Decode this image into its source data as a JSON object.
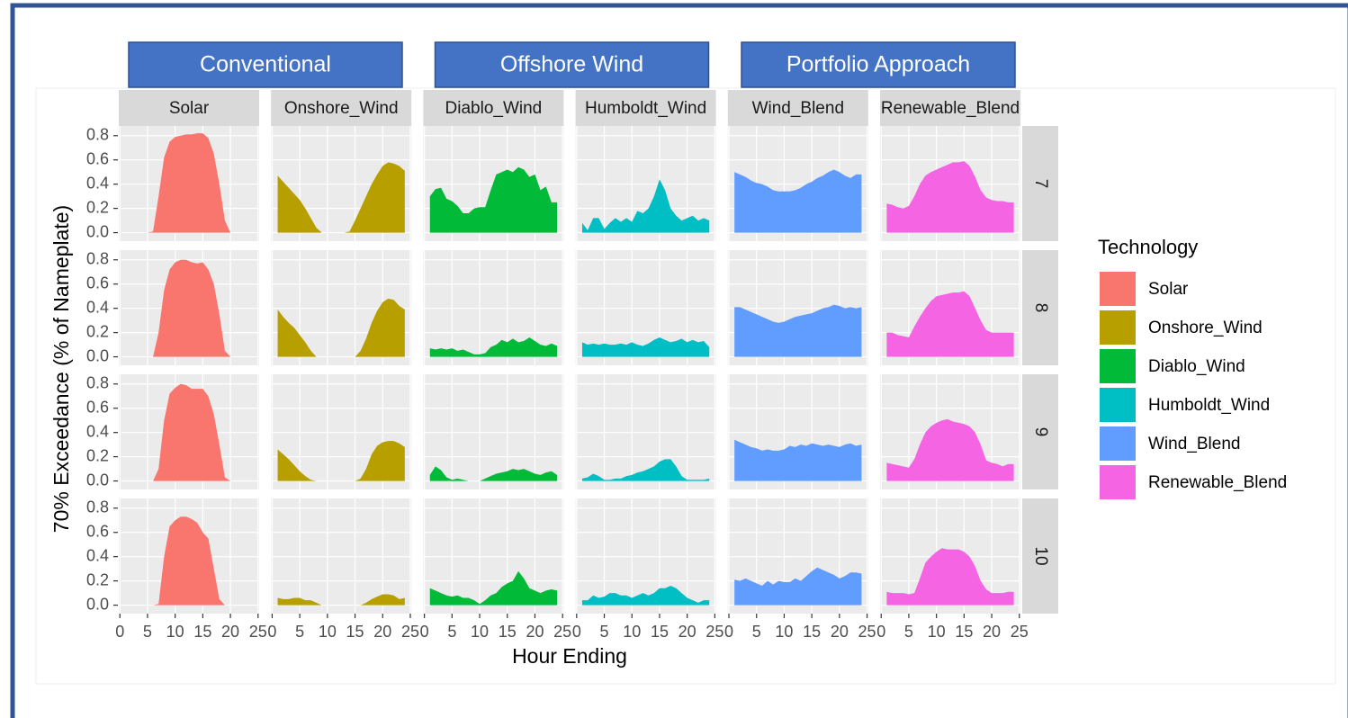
{
  "chart_data": {
    "type": "area",
    "group_labels": [
      "Conventional",
      "Offshore Wind",
      "Portfolio Approach"
    ],
    "x_label": "Hour Ending",
    "y_label": "70% Exceedance (% of Nameplate)",
    "legend_title": "Technology",
    "rows": [
      "7",
      "8",
      "9",
      "10"
    ],
    "x": [
      1,
      2,
      3,
      4,
      5,
      6,
      7,
      8,
      9,
      10,
      11,
      12,
      13,
      14,
      15,
      16,
      17,
      18,
      19,
      20,
      21,
      22,
      23,
      24
    ],
    "xlim": [
      -0.2,
      25.2
    ],
    "xticks": [
      0,
      5,
      10,
      15,
      20,
      25
    ],
    "ylim": [
      -0.07,
      0.88
    ],
    "yticks": [
      {
        "value": 0,
        "label": "0.0"
      },
      0.2,
      0.4,
      0.6,
      0.8
    ],
    "grid": true,
    "series": [
      {
        "name": "Solar",
        "color": "#F8766D",
        "values": [
          [
            0,
            0,
            0,
            0,
            0,
            0.01,
            0.3,
            0.62,
            0.75,
            0.79,
            0.8,
            0.81,
            0.81,
            0.82,
            0.82,
            0.78,
            0.65,
            0.4,
            0.1,
            0,
            0,
            0,
            0,
            0
          ],
          [
            0,
            0,
            0,
            0,
            0,
            0,
            0.2,
            0.55,
            0.72,
            0.78,
            0.8,
            0.8,
            0.78,
            0.77,
            0.78,
            0.72,
            0.6,
            0.35,
            0.05,
            0,
            0,
            0,
            0,
            0
          ],
          [
            0,
            0,
            0,
            0,
            0,
            0,
            0.1,
            0.5,
            0.72,
            0.77,
            0.8,
            0.79,
            0.76,
            0.76,
            0.76,
            0.7,
            0.55,
            0.3,
            0.03,
            0,
            0,
            0,
            0,
            0
          ],
          [
            0,
            0,
            0,
            0,
            0,
            0,
            0.01,
            0.4,
            0.65,
            0.7,
            0.73,
            0.73,
            0.71,
            0.68,
            0.6,
            0.55,
            0.3,
            0.05,
            0,
            0,
            0,
            0,
            0,
            0
          ]
        ]
      },
      {
        "name": "Onshore_Wind",
        "color": "#B79F00",
        "values": [
          [
            0.47,
            0.42,
            0.37,
            0.32,
            0.27,
            0.2,
            0.12,
            0.04,
            0,
            0,
            0,
            0,
            0,
            0.01,
            0.1,
            0.2,
            0.3,
            0.4,
            0.48,
            0.55,
            0.58,
            0.57,
            0.55,
            0.51
          ],
          [
            0.39,
            0.33,
            0.28,
            0.24,
            0.18,
            0.12,
            0.05,
            0,
            0,
            0,
            0,
            0,
            0,
            0,
            0,
            0.05,
            0.15,
            0.28,
            0.38,
            0.45,
            0.48,
            0.47,
            0.42,
            0.39
          ],
          [
            0.26,
            0.22,
            0.18,
            0.13,
            0.08,
            0.04,
            0.01,
            0,
            0,
            0,
            0,
            0,
            0,
            0,
            0,
            0.02,
            0.1,
            0.22,
            0.29,
            0.32,
            0.33,
            0.33,
            0.31,
            0.28
          ],
          [
            0.06,
            0.05,
            0.05,
            0.06,
            0.06,
            0.04,
            0.04,
            0.02,
            0,
            0,
            0,
            0,
            0,
            0,
            0,
            0,
            0.02,
            0.05,
            0.07,
            0.09,
            0.09,
            0.08,
            0.05,
            0.06
          ]
        ]
      },
      {
        "name": "Diablo_Wind",
        "color": "#00BA38",
        "values": [
          [
            0.3,
            0.36,
            0.37,
            0.28,
            0.26,
            0.22,
            0.16,
            0.16,
            0.2,
            0.21,
            0.21,
            0.35,
            0.48,
            0.5,
            0.52,
            0.5,
            0.54,
            0.52,
            0.46,
            0.48,
            0.35,
            0.38,
            0.25,
            0.25
          ],
          [
            0.07,
            0.06,
            0.07,
            0.06,
            0.07,
            0.05,
            0.06,
            0.04,
            0.02,
            0.02,
            0.03,
            0.08,
            0.1,
            0.14,
            0.12,
            0.15,
            0.12,
            0.13,
            0.16,
            0.13,
            0.1,
            0.09,
            0.11,
            0.09
          ],
          [
            0.05,
            0.12,
            0.09,
            0.03,
            0.01,
            0.02,
            0.01,
            0,
            0,
            0,
            0.02,
            0.04,
            0.06,
            0.07,
            0.08,
            0.1,
            0.09,
            0.1,
            0.08,
            0.06,
            0.05,
            0.07,
            0.08,
            0.05
          ],
          [
            0.14,
            0.12,
            0.1,
            0.08,
            0.07,
            0.08,
            0.06,
            0.06,
            0.04,
            0.01,
            0.04,
            0.08,
            0.1,
            0.15,
            0.18,
            0.2,
            0.28,
            0.22,
            0.14,
            0.12,
            0.1,
            0.12,
            0.13,
            0.12
          ]
        ]
      },
      {
        "name": "Humboldt_Wind",
        "color": "#00BFC4",
        "values": [
          [
            0.08,
            0.02,
            0.12,
            0.12,
            0.03,
            0.08,
            0.12,
            0.09,
            0.12,
            0.09,
            0.18,
            0.16,
            0.2,
            0.3,
            0.44,
            0.35,
            0.2,
            0.14,
            0.1,
            0.12,
            0.14,
            0.1,
            0.12,
            0.1
          ],
          [
            0.12,
            0.1,
            0.11,
            0.1,
            0.11,
            0.1,
            0.1,
            0.11,
            0.1,
            0.12,
            0.1,
            0.09,
            0.11,
            0.14,
            0.16,
            0.14,
            0.12,
            0.13,
            0.15,
            0.12,
            0.14,
            0.12,
            0.13,
            0.08
          ],
          [
            0.02,
            0.03,
            0.06,
            0.04,
            0.01,
            0.01,
            0.02,
            0.02,
            0.04,
            0.05,
            0.07,
            0.08,
            0.1,
            0.12,
            0.16,
            0.18,
            0.18,
            0.12,
            0.04,
            0.01,
            0.01,
            0.01,
            0.01,
            0.02
          ],
          [
            0.04,
            0.04,
            0.08,
            0.06,
            0.07,
            0.1,
            0.1,
            0.08,
            0.08,
            0.06,
            0.08,
            0.1,
            0.08,
            0.1,
            0.14,
            0.14,
            0.16,
            0.14,
            0.1,
            0.06,
            0.04,
            0.02,
            0.04,
            0.04
          ]
        ]
      },
      {
        "name": "Wind_Blend",
        "color": "#619CFF",
        "values": [
          [
            0.5,
            0.48,
            0.46,
            0.43,
            0.41,
            0.4,
            0.38,
            0.35,
            0.34,
            0.34,
            0.34,
            0.35,
            0.37,
            0.4,
            0.42,
            0.45,
            0.47,
            0.5,
            0.52,
            0.5,
            0.47,
            0.45,
            0.48,
            0.48
          ],
          [
            0.41,
            0.41,
            0.39,
            0.37,
            0.35,
            0.33,
            0.31,
            0.29,
            0.28,
            0.29,
            0.31,
            0.33,
            0.34,
            0.35,
            0.36,
            0.38,
            0.4,
            0.41,
            0.43,
            0.42,
            0.4,
            0.41,
            0.4,
            0.41
          ],
          [
            0.34,
            0.32,
            0.3,
            0.28,
            0.27,
            0.25,
            0.26,
            0.25,
            0.25,
            0.26,
            0.29,
            0.28,
            0.3,
            0.29,
            0.31,
            0.3,
            0.29,
            0.3,
            0.29,
            0.28,
            0.3,
            0.31,
            0.29,
            0.3
          ],
          [
            0.21,
            0.2,
            0.22,
            0.2,
            0.18,
            0.16,
            0.2,
            0.17,
            0.2,
            0.19,
            0.19,
            0.22,
            0.2,
            0.24,
            0.28,
            0.31,
            0.29,
            0.27,
            0.25,
            0.22,
            0.24,
            0.27,
            0.27,
            0.26
          ]
        ]
      },
      {
        "name": "Renewable_Blend",
        "color": "#F564E3",
        "values": [
          [
            0.24,
            0.23,
            0.21,
            0.2,
            0.22,
            0.3,
            0.4,
            0.47,
            0.5,
            0.52,
            0.54,
            0.56,
            0.58,
            0.58,
            0.59,
            0.55,
            0.46,
            0.35,
            0.29,
            0.27,
            0.26,
            0.26,
            0.25,
            0.25
          ],
          [
            0.2,
            0.2,
            0.18,
            0.17,
            0.16,
            0.25,
            0.33,
            0.4,
            0.46,
            0.5,
            0.51,
            0.52,
            0.53,
            0.53,
            0.54,
            0.5,
            0.4,
            0.3,
            0.22,
            0.2,
            0.2,
            0.2,
            0.2,
            0.2
          ],
          [
            0.15,
            0.14,
            0.13,
            0.12,
            0.11,
            0.18,
            0.3,
            0.4,
            0.45,
            0.48,
            0.5,
            0.51,
            0.49,
            0.48,
            0.47,
            0.45,
            0.4,
            0.3,
            0.17,
            0.15,
            0.14,
            0.12,
            0.14,
            0.14
          ],
          [
            0.11,
            0.1,
            0.1,
            0.1,
            0.09,
            0.1,
            0.22,
            0.35,
            0.4,
            0.44,
            0.47,
            0.46,
            0.46,
            0.46,
            0.44,
            0.4,
            0.32,
            0.2,
            0.13,
            0.1,
            0.1,
            0.1,
            0.11,
            0.11
          ]
        ]
      }
    ]
  }
}
